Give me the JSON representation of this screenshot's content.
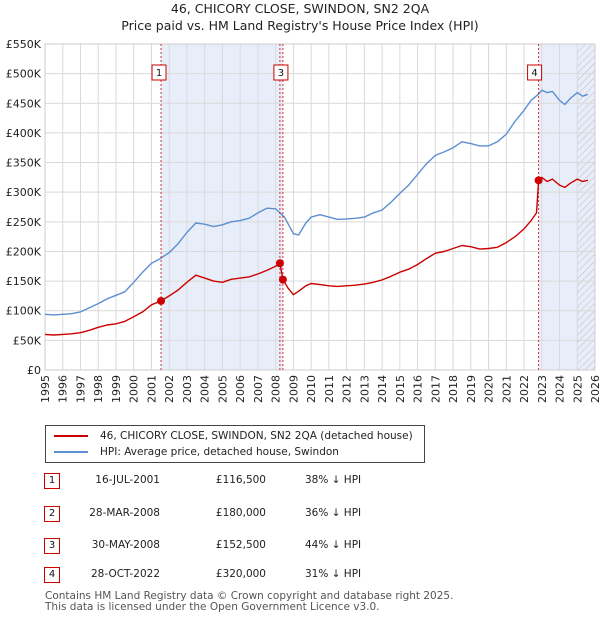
{
  "chart_data": {
    "type": "line",
    "title": "46, CHICORY CLOSE, SWINDON, SN2 2QA",
    "subtitle": "Price paid vs. HM Land Registry's House Price Index (HPI)",
    "xlim": [
      1995,
      2026
    ],
    "ylim": [
      0,
      550000
    ],
    "x_ticks": [
      1995,
      1996,
      1997,
      1998,
      1999,
      2000,
      2001,
      2002,
      2003,
      2004,
      2005,
      2006,
      2007,
      2008,
      2009,
      2010,
      2011,
      2012,
      2013,
      2014,
      2015,
      2016,
      2017,
      2018,
      2019,
      2020,
      2021,
      2022,
      2023,
      2024,
      2025,
      2026
    ],
    "y_ticks": [
      {
        "value": 0,
        "label": "£0"
      },
      {
        "value": 50000,
        "label": "£50K"
      },
      {
        "value": 100000,
        "label": "£100K"
      },
      {
        "value": 150000,
        "label": "£150K"
      },
      {
        "value": 200000,
        "label": "£200K"
      },
      {
        "value": 250000,
        "label": "£250K"
      },
      {
        "value": 300000,
        "label": "£300K"
      },
      {
        "value": 350000,
        "label": "£350K"
      },
      {
        "value": 400000,
        "label": "£400K"
      },
      {
        "value": 450000,
        "label": "£450K"
      },
      {
        "value": 500000,
        "label": "£500K"
      },
      {
        "value": 550000,
        "label": "£550K"
      }
    ],
    "grid": true,
    "shaded_periods": [
      [
        2001.54,
        2008.41
      ],
      [
        2022.82,
        2026
      ]
    ],
    "hatched_from": 2025.0,
    "series": [
      {
        "name": "46, CHICORY CLOSE, SWINDON, SN2 2QA (detached house)",
        "color": "#cc0000",
        "x": [
          1995.0,
          1995.5,
          1996.0,
          1996.5,
          1997.0,
          1997.5,
          1998.0,
          1998.5,
          1999.0,
          1999.5,
          2000.0,
          2000.5,
          2001.0,
          2001.54,
          2002.0,
          2002.5,
          2003.0,
          2003.5,
          2004.0,
          2004.5,
          2005.0,
          2005.5,
          2006.0,
          2006.5,
          2007.0,
          2007.5,
          2008.0,
          2008.24,
          2008.41,
          2008.7,
          2009.0,
          2009.3,
          2009.7,
          2010.0,
          2010.5,
          2011.0,
          2011.5,
          2012.0,
          2012.5,
          2013.0,
          2013.5,
          2014.0,
          2014.5,
          2015.0,
          2015.5,
          2016.0,
          2016.5,
          2017.0,
          2017.5,
          2018.0,
          2018.5,
          2019.0,
          2019.5,
          2020.0,
          2020.5,
          2021.0,
          2021.5,
          2022.0,
          2022.4,
          2022.7,
          2022.82,
          2023.0,
          2023.3,
          2023.6,
          2024.0,
          2024.3,
          2024.6,
          2025.0,
          2025.3,
          2025.6
        ],
        "y": [
          60000,
          59000,
          60000,
          61000,
          63000,
          67000,
          72000,
          76000,
          78000,
          82000,
          90000,
          98000,
          110000,
          116500,
          125000,
          135000,
          148000,
          160000,
          155000,
          150000,
          148000,
          153000,
          155000,
          157000,
          162000,
          168000,
          175000,
          180000,
          152500,
          138000,
          127000,
          133000,
          142000,
          146000,
          144000,
          142000,
          141000,
          142000,
          143000,
          145000,
          148000,
          152000,
          158000,
          165000,
          170000,
          178000,
          188000,
          197000,
          200000,
          205000,
          210000,
          208000,
          204000,
          205000,
          207000,
          215000,
          225000,
          238000,
          252000,
          265000,
          320000,
          325000,
          318000,
          322000,
          312000,
          308000,
          315000,
          322000,
          318000,
          320000
        ]
      },
      {
        "name": "HPI: Average price, detached house, Swindon",
        "color": "#5b8fd1",
        "x": [
          1995.0,
          1995.5,
          1996.0,
          1996.5,
          1997.0,
          1997.5,
          1998.0,
          1998.5,
          1999.0,
          1999.5,
          2000.0,
          2000.5,
          2001.0,
          2001.5,
          2002.0,
          2002.5,
          2003.0,
          2003.5,
          2004.0,
          2004.5,
          2005.0,
          2005.5,
          2006.0,
          2006.5,
          2007.0,
          2007.5,
          2008.0,
          2008.5,
          2009.0,
          2009.3,
          2009.7,
          2010.0,
          2010.5,
          2011.0,
          2011.5,
          2012.0,
          2012.5,
          2013.0,
          2013.5,
          2014.0,
          2014.5,
          2015.0,
          2015.5,
          2016.0,
          2016.5,
          2017.0,
          2017.5,
          2018.0,
          2018.5,
          2019.0,
          2019.5,
          2020.0,
          2020.5,
          2021.0,
          2021.5,
          2022.0,
          2022.4,
          2022.8,
          2023.0,
          2023.3,
          2023.6,
          2024.0,
          2024.3,
          2024.6,
          2025.0,
          2025.3,
          2025.6
        ],
        "y": [
          94000,
          93000,
          94000,
          95000,
          98000,
          105000,
          112000,
          120000,
          126000,
          132000,
          148000,
          165000,
          180000,
          188000,
          198000,
          213000,
          232000,
          248000,
          246000,
          242000,
          245000,
          250000,
          252000,
          256000,
          265000,
          273000,
          272000,
          258000,
          230000,
          228000,
          248000,
          258000,
          262000,
          258000,
          254000,
          255000,
          256000,
          258000,
          265000,
          270000,
          283000,
          298000,
          312000,
          330000,
          348000,
          362000,
          368000,
          375000,
          385000,
          382000,
          378000,
          378000,
          385000,
          398000,
          420000,
          438000,
          455000,
          465000,
          472000,
          468000,
          470000,
          455000,
          448000,
          458000,
          468000,
          462000,
          465000
        ]
      }
    ],
    "annotations": [
      {
        "label": "1",
        "x": 2001.54,
        "sale_price": 116500
      },
      {
        "label": "2",
        "x": 2008.24,
        "sale_price": 180000
      },
      {
        "label": "3",
        "x": 2008.41,
        "sale_price": 152500
      },
      {
        "label": "4",
        "x": 2022.82,
        "sale_price": 320000
      }
    ],
    "visible_number_labels": [
      "1",
      "3",
      "4"
    ]
  },
  "legend": {
    "property_label": "46, CHICORY CLOSE, SWINDON, SN2 2QA (detached house)",
    "hpi_label": "HPI: Average price, detached house, Swindon"
  },
  "sales": [
    {
      "num": "1",
      "date": "16-JUL-2001",
      "price": "£116,500",
      "hpi": "38% ↓ HPI"
    },
    {
      "num": "2",
      "date": "28-MAR-2008",
      "price": "£180,000",
      "hpi": "36% ↓ HPI"
    },
    {
      "num": "3",
      "date": "30-MAY-2008",
      "price": "£152,500",
      "hpi": "44% ↓ HPI"
    },
    {
      "num": "4",
      "date": "28-OCT-2022",
      "price": "£320,000",
      "hpi": "31% ↓ HPI"
    }
  ],
  "footer": {
    "line1": "Contains HM Land Registry data © Crown copyright and database right 2025.",
    "line2": "This data is licensed under the Open Government Licence v3.0."
  },
  "colors": {
    "property": "#cc0000",
    "hpi": "#5b8fd1",
    "shade": "#e8eef9",
    "grid": "#d9d9d9"
  }
}
